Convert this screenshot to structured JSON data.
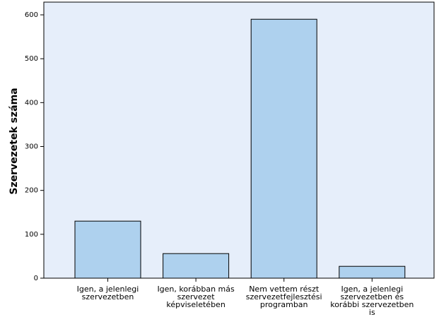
{
  "chart_data": {
    "type": "bar",
    "y_label": "Szervezetek száma",
    "categories": [
      "Igen, a jelenlegi\nszervezetben",
      "Igen, korábban más\nszervezet\nképviseletében",
      "Nem vettem részt\nszervezetfejlesztési\nprogramban",
      "Igen, a jelenlegi\nszervezetben és\nkorábbi szervezetben\nis"
    ],
    "values": [
      130,
      56,
      590,
      27
    ],
    "color": "#aed1ee",
    "ylim": [
      0,
      629
    ],
    "yticks": [
      0,
      100,
      200,
      300,
      400,
      500,
      600
    ]
  }
}
